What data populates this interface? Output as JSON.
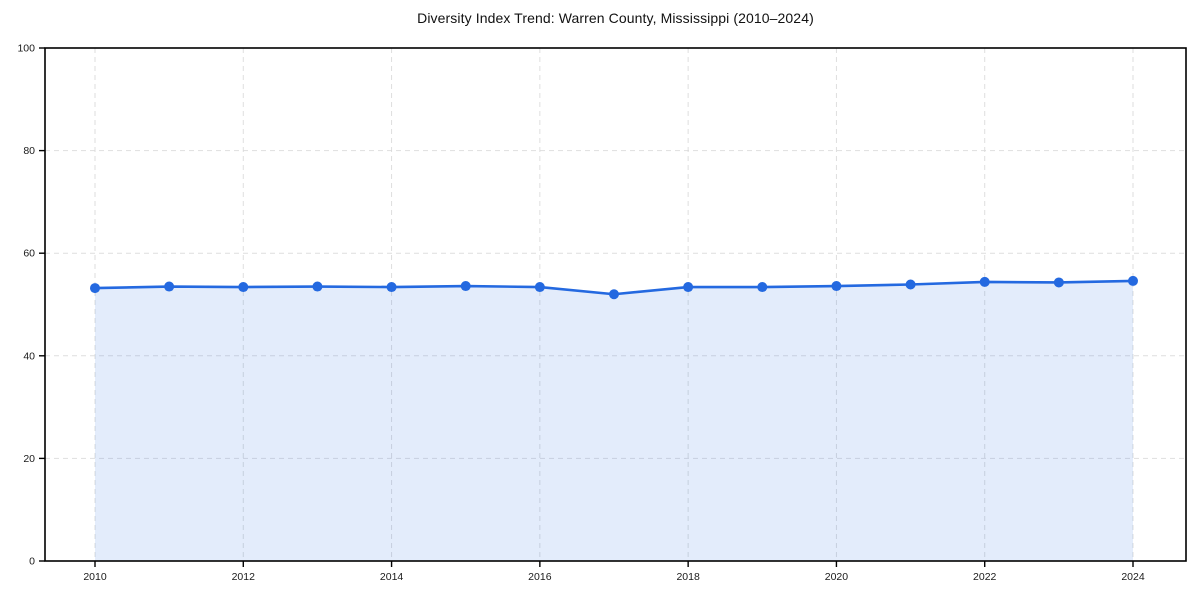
{
  "page": {
    "background": "#ffffff"
  },
  "chart_data": {
    "type": "area",
    "title": "Diversity Index Trend: Warren County, Mississippi (2010–2024)",
    "x": [
      2010,
      2011,
      2012,
      2013,
      2014,
      2015,
      2016,
      2017,
      2018,
      2019,
      2020,
      2021,
      2022,
      2023,
      2024
    ],
    "series": [
      {
        "name": "Diversity Index",
        "values": [
          53.2,
          53.5,
          53.4,
          53.5,
          53.4,
          53.6,
          53.4,
          52.0,
          53.4,
          53.4,
          53.6,
          53.9,
          54.4,
          54.3,
          54.6
        ]
      }
    ],
    "xlabel": "",
    "ylabel": "",
    "ylim": [
      0,
      100
    ],
    "y_ticks": [
      0,
      20,
      40,
      60,
      80,
      100
    ],
    "x_ticks": [
      2010,
      2012,
      2014,
      2016,
      2018,
      2020,
      2022,
      2024
    ],
    "grid": true,
    "grid_style": "dashed",
    "legend_position": "none",
    "marker": "circle",
    "colors": {
      "line": "#2469e0",
      "fill": "#2469e0",
      "fill_opacity": 0.13,
      "grid": "#d9d9d9",
      "spine": "#000000",
      "text": "#1a1a1a"
    }
  }
}
